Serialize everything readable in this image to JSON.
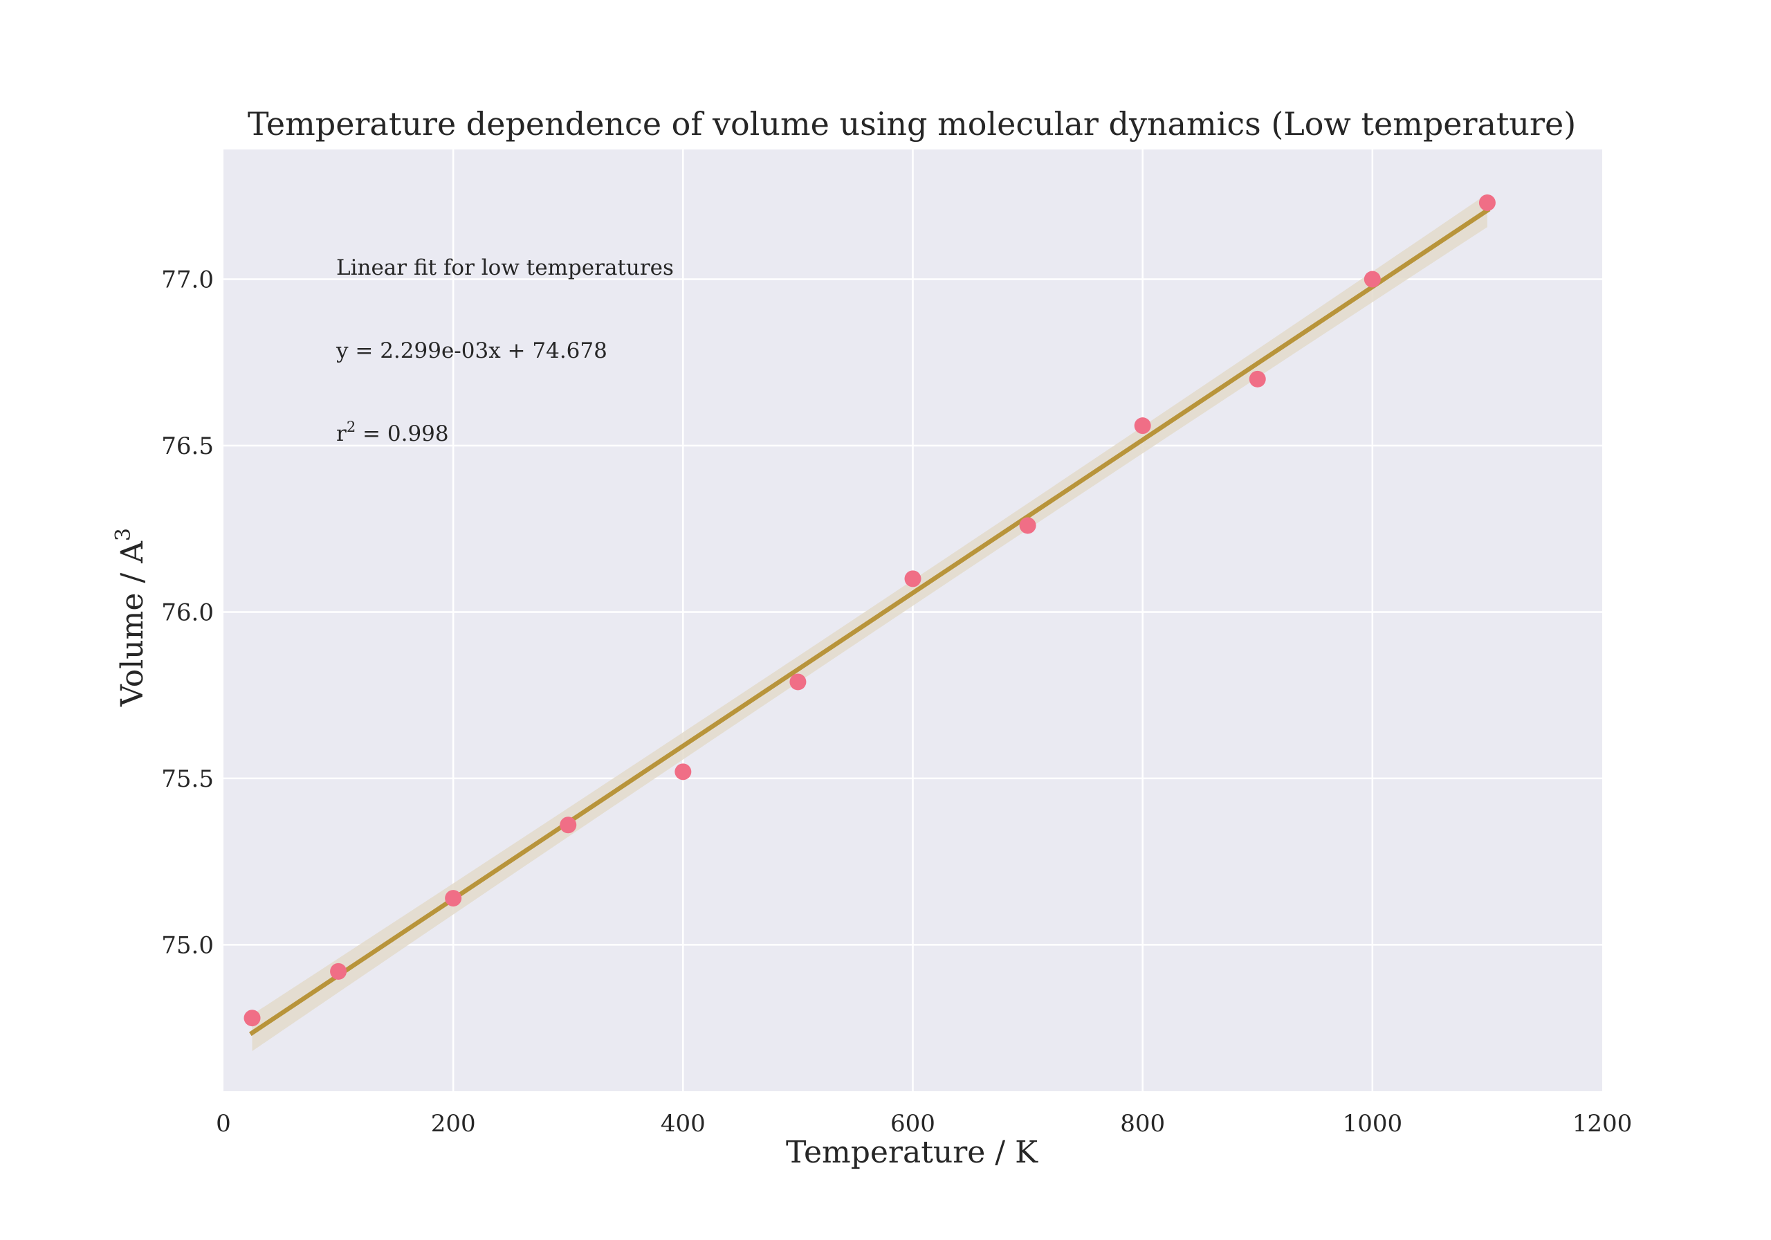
{
  "chart_data": {
    "type": "scatter",
    "title": "Temperature dependence of volume using molecular dynamics (Low temperature)",
    "xlabel": "Temperature / K",
    "ylabel_main": "Volume / A",
    "ylabel_sup": "3",
    "xlim": [
      0,
      1200
    ],
    "ylim": [
      74.56,
      77.39
    ],
    "x_ticks": [
      0,
      200,
      400,
      600,
      800,
      1000,
      1200
    ],
    "x_tick_labels": [
      "0",
      "200",
      "400",
      "600",
      "800",
      "1000",
      "1200"
    ],
    "y_ticks": [
      75.0,
      75.5,
      76.0,
      76.5,
      77.0
    ],
    "y_tick_labels": [
      "75.0",
      "75.5",
      "76.0",
      "76.5",
      "77.0"
    ],
    "grid": true,
    "series": [
      {
        "x": [
          25,
          100,
          200,
          300,
          400,
          500,
          600,
          700,
          800,
          900,
          1000,
          1100
        ],
        "y": [
          74.78,
          74.92,
          75.14,
          75.36,
          75.52,
          75.79,
          76.1,
          76.26,
          76.56,
          76.7,
          77.0,
          77.23
        ],
        "color": "#f06e86"
      }
    ],
    "fit": {
      "x_range": [
        25,
        1100
      ],
      "slope": 0.002299,
      "intercept": 74.678,
      "ci_half_width": [
        0.055,
        0.025,
        0.05
      ],
      "color": "#b8943a",
      "band_color": "#e3dacb"
    },
    "annotations": {
      "label": "Linear fit for low temperatures",
      "equation": "y = 2.299e-03x + 74.678",
      "r2_main": "r",
      "r2_sup": "2",
      "r2_value": " = 0.998"
    },
    "colors": {
      "plot_background": "#eaeaf2",
      "grid": "#ffffff",
      "text": "#262626"
    }
  }
}
